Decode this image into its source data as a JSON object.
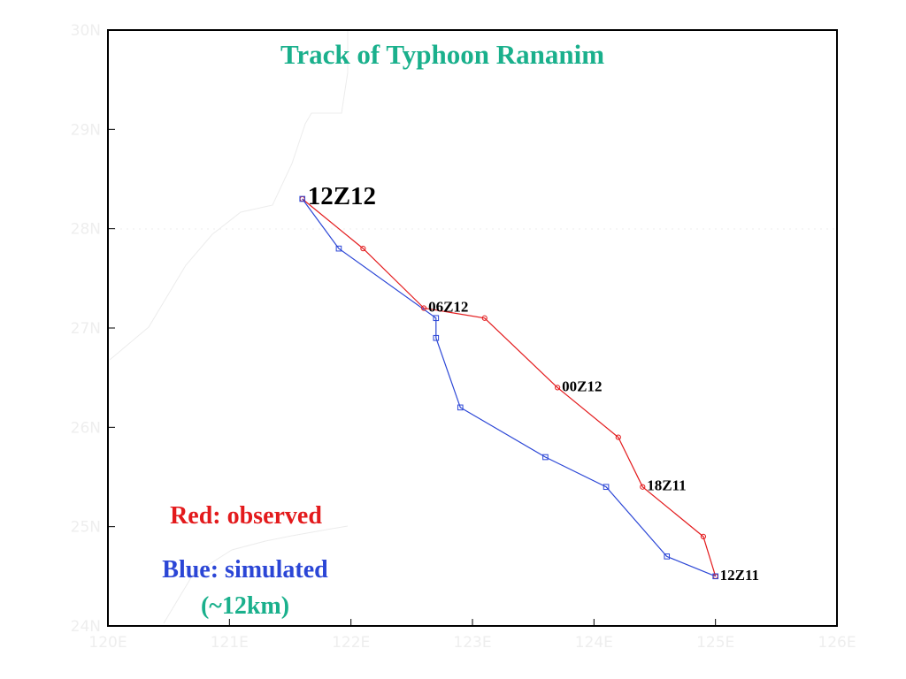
{
  "title": "Track of Typhoon Rananim",
  "legend": {
    "observed": "Red: observed",
    "simulated": "Blue: simulated",
    "resolution": "(~12km)"
  },
  "colors": {
    "title": "#1ab08c",
    "observed": "#e31a1c",
    "simulated": "#2b46d6",
    "resolution": "#1ab08c",
    "axis_ticks": "#eeeeee",
    "coastline": "#ececec",
    "frame": "#000000"
  },
  "chart_data": {
    "type": "line",
    "x_axis": {
      "ticks": [
        "120E",
        "121E",
        "122E",
        "123E",
        "124E",
        "125E",
        "126E"
      ],
      "range": [
        120,
        126
      ]
    },
    "y_axis": {
      "ticks": [
        "24N",
        "25N",
        "26N",
        "27N",
        "28N",
        "29N",
        "30N"
      ],
      "range": [
        24,
        30
      ]
    },
    "grid": "dotted line at 28N",
    "series": [
      {
        "name": "Red: observed",
        "marker": "circle",
        "lon": [
          125.0,
          124.9,
          124.4,
          124.2,
          123.7,
          123.1,
          122.6,
          122.1,
          121.6
        ],
        "lat": [
          24.5,
          24.9,
          25.4,
          25.9,
          26.4,
          27.1,
          27.2,
          27.8,
          28.3
        ]
      },
      {
        "name": "Blue: simulated",
        "marker": "square",
        "lon": [
          125.0,
          124.6,
          124.1,
          123.6,
          122.9,
          122.7,
          122.7,
          121.9,
          121.6
        ],
        "lat": [
          24.5,
          24.7,
          25.4,
          25.7,
          26.2,
          26.9,
          27.1,
          27.8,
          28.3
        ]
      }
    ],
    "annotations": [
      {
        "text": "12Z11",
        "lon": 125.0,
        "lat": 24.5,
        "size": "small"
      },
      {
        "text": "18Z11",
        "lon": 124.4,
        "lat": 25.4,
        "size": "small"
      },
      {
        "text": "00Z12",
        "lon": 123.7,
        "lat": 26.4,
        "size": "small"
      },
      {
        "text": "06Z12",
        "lon": 122.6,
        "lat": 27.2,
        "size": "small"
      },
      {
        "text": "12Z12",
        "lon": 121.6,
        "lat": 28.3,
        "size": "large"
      }
    ]
  }
}
